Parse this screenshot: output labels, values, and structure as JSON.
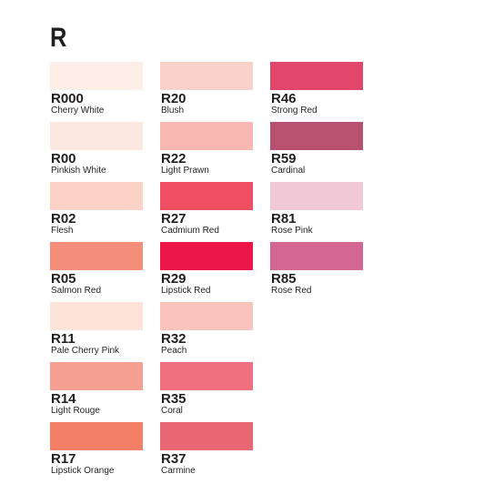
{
  "title": "R",
  "columns": [
    {
      "swatches": [
        {
          "code": "R000",
          "name": "Cherry White",
          "color": "#fdeee8"
        },
        {
          "code": "R00",
          "name": "Pinkish White",
          "color": "#fde8e1"
        },
        {
          "code": "R02",
          "name": "Flesh",
          "color": "#fdd2c6"
        },
        {
          "code": "R05",
          "name": "Salmon Red",
          "color": "#f48e7a"
        },
        {
          "code": "R11",
          "name": "Pale Cherry Pink",
          "color": "#fde3d8"
        },
        {
          "code": "R14",
          "name": "Light Rouge",
          "color": "#f59f92"
        },
        {
          "code": "R17",
          "name": "Lipstick Orange",
          "color": "#f27f66"
        }
      ]
    },
    {
      "swatches": [
        {
          "code": "R20",
          "name": "Blush",
          "color": "#fad1c8"
        },
        {
          "code": "R22",
          "name": "Light Prawn",
          "color": "#f8b7b0"
        },
        {
          "code": "R27",
          "name": "Cadmium Red",
          "color": "#f04e63"
        },
        {
          "code": "R29",
          "name": "Lipstick Red",
          "color": "#ec1748"
        },
        {
          "code": "R32",
          "name": "Peach",
          "color": "#f9c2ba"
        },
        {
          "code": "R35",
          "name": "Coral",
          "color": "#f1707f"
        },
        {
          "code": "R37",
          "name": "Carmine",
          "color": "#e96774"
        }
      ]
    },
    {
      "swatches": [
        {
          "code": "R46",
          "name": "Strong Red",
          "color": "#e2466a"
        },
        {
          "code": "R59",
          "name": "Cardinal",
          "color": "#b8506f"
        },
        {
          "code": "R81",
          "name": "Rose Pink",
          "color": "#f1c8d5"
        },
        {
          "code": "R85",
          "name": "Rose Red",
          "color": "#d46792"
        }
      ]
    }
  ]
}
